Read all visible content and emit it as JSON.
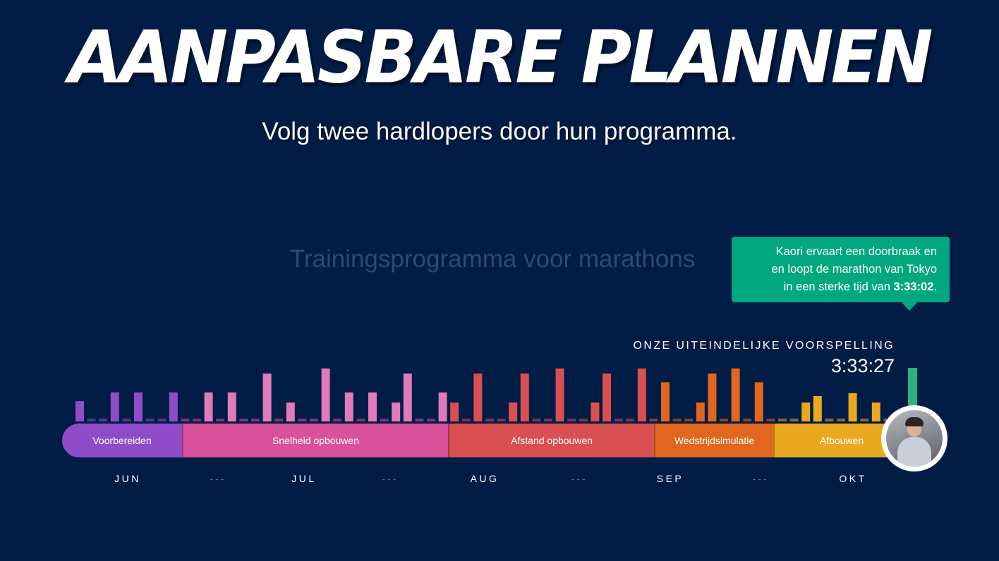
{
  "header": {
    "title": "AANPASBARE PLANNEN",
    "subtitle": "Volg twee hardlopers door hun programma."
  },
  "program_title": "Trainingsprogramma voor marathons",
  "tooltip": {
    "line1": "Kaori ervaart een doorbraak en",
    "line2": "en loopt de marathon van Tokyo",
    "line3_prefix": "in een sterke tijd van ",
    "time": "3:33:02",
    "line3_suffix": "."
  },
  "prediction": {
    "label": "ONZE UITEINDELIJKE VOORSPELLING",
    "time": "3:33:27"
  },
  "phases": [
    {
      "label": "Voorbereiden",
      "color": "#8f4cc8",
      "weeks": 5
    },
    {
      "label": "Snelheid opbouwen",
      "color": "#d9519a",
      "weeks": 11
    },
    {
      "label": "Afstand opbouwen",
      "color": "#d94f52",
      "weeks": 9
    },
    {
      "label": "Wedstrijdsimulatie",
      "color": "#e2661f",
      "weeks": 5
    },
    {
      "label": "Afbouwen",
      "color": "#e9a820",
      "weeks": 5
    }
  ],
  "months": [
    "JUN",
    "---",
    "JUL",
    "---",
    "AUG",
    "---",
    "SEP",
    "---",
    "OKT"
  ],
  "race_day_color": "#2cb37d",
  "bars": [
    {
      "v": 28,
      "c": "#8f4cc8"
    },
    {
      "v": 4,
      "c": "#8f4cc8",
      "dim": true
    },
    {
      "v": 4,
      "c": "#8f4cc8",
      "dim": true
    },
    {
      "v": 40,
      "c": "#8f4cc8"
    },
    {
      "v": 4,
      "c": "#8f4cc8",
      "dim": true
    },
    {
      "v": 40,
      "c": "#8f4cc8"
    },
    {
      "v": 4,
      "c": "#8f4cc8",
      "dim": true
    },
    {
      "v": 4,
      "c": "#8f4cc8",
      "dim": true
    },
    {
      "v": 40,
      "c": "#8f4cc8"
    },
    {
      "v": 4,
      "c": "#d9519a",
      "dim": true
    },
    {
      "v": 4,
      "c": "#d9519a",
      "dim": true
    },
    {
      "v": 40,
      "c": "#e07ab8"
    },
    {
      "v": 4,
      "c": "#d9519a",
      "dim": true
    },
    {
      "v": 40,
      "c": "#e07ab8"
    },
    {
      "v": 4,
      "c": "#d9519a",
      "dim": true
    },
    {
      "v": 4,
      "c": "#d9519a",
      "dim": true
    },
    {
      "v": 66,
      "c": "#e07ab8"
    },
    {
      "v": 4,
      "c": "#d9519a",
      "dim": true
    },
    {
      "v": 26,
      "c": "#e07ab8"
    },
    {
      "v": 4,
      "c": "#d9519a",
      "dim": true
    },
    {
      "v": 4,
      "c": "#d9519a",
      "dim": true
    },
    {
      "v": 73,
      "c": "#e07ab8"
    },
    {
      "v": 4,
      "c": "#d9519a",
      "dim": true
    },
    {
      "v": 40,
      "c": "#e07ab8"
    },
    {
      "v": 4,
      "c": "#d9519a",
      "dim": true
    },
    {
      "v": 40,
      "c": "#e07ab8"
    },
    {
      "v": 4,
      "c": "#d9519a",
      "dim": true
    },
    {
      "v": 26,
      "c": "#e07ab8"
    },
    {
      "v": 66,
      "c": "#e07ab8"
    },
    {
      "v": 4,
      "c": "#d9519a",
      "dim": true
    },
    {
      "v": 4,
      "c": "#d9519a",
      "dim": true
    },
    {
      "v": 40,
      "c": "#e07ab8"
    },
    {
      "v": 26,
      "c": "#d94f52"
    },
    {
      "v": 4,
      "c": "#d94f52",
      "dim": true
    },
    {
      "v": 66,
      "c": "#d94f52"
    },
    {
      "v": 4,
      "c": "#d94f52",
      "dim": true
    },
    {
      "v": 4,
      "c": "#d94f52",
      "dim": true
    },
    {
      "v": 26,
      "c": "#d94f52"
    },
    {
      "v": 66,
      "c": "#d94f52"
    },
    {
      "v": 4,
      "c": "#d94f52",
      "dim": true
    },
    {
      "v": 4,
      "c": "#d94f52",
      "dim": true
    },
    {
      "v": 73,
      "c": "#d94f52"
    },
    {
      "v": 4,
      "c": "#d94f52",
      "dim": true
    },
    {
      "v": 4,
      "c": "#d94f52",
      "dim": true
    },
    {
      "v": 26,
      "c": "#d94f52"
    },
    {
      "v": 66,
      "c": "#d94f52"
    },
    {
      "v": 4,
      "c": "#d94f52",
      "dim": true
    },
    {
      "v": 4,
      "c": "#d94f52",
      "dim": true
    },
    {
      "v": 73,
      "c": "#d94f52"
    },
    {
      "v": 4,
      "c": "#e2661f",
      "dim": true
    },
    {
      "v": 54,
      "c": "#e2661f"
    },
    {
      "v": 4,
      "c": "#e2661f",
      "dim": true
    },
    {
      "v": 4,
      "c": "#e2661f",
      "dim": true
    },
    {
      "v": 26,
      "c": "#e2661f"
    },
    {
      "v": 66,
      "c": "#e2661f"
    },
    {
      "v": 4,
      "c": "#e2661f",
      "dim": true
    },
    {
      "v": 73,
      "c": "#e2661f"
    },
    {
      "v": 4,
      "c": "#e2661f",
      "dim": true
    },
    {
      "v": 54,
      "c": "#e2661f"
    },
    {
      "v": 4,
      "c": "#e2661f",
      "dim": true
    },
    {
      "v": 4,
      "c": "#e9a820",
      "dim": true
    },
    {
      "v": 4,
      "c": "#e9a820",
      "dim": true
    },
    {
      "v": 26,
      "c": "#e9a820"
    },
    {
      "v": 35,
      "c": "#e9a820"
    },
    {
      "v": 4,
      "c": "#e9a820",
      "dim": true
    },
    {
      "v": 4,
      "c": "#e9a820",
      "dim": true
    },
    {
      "v": 39,
      "c": "#e9a820"
    },
    {
      "v": 4,
      "c": "#e9a820",
      "dim": true
    },
    {
      "v": 26,
      "c": "#e9a820"
    },
    {
      "v": 4,
      "c": "#e9a820",
      "dim": true
    }
  ]
}
